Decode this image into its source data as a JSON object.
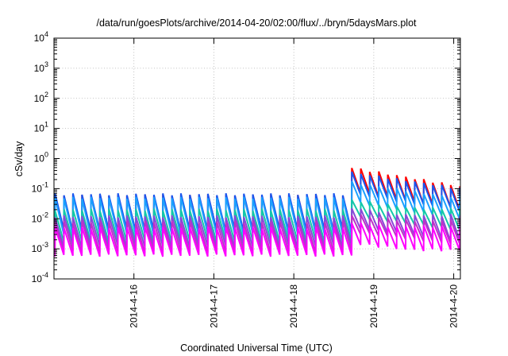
{
  "chart_data": {
    "type": "line",
    "title": "/data/run/goesPlots/archive/2014-04-20/02:00/flux/../bryn/5daysMars.plot",
    "xlabel": "Coordinated Universal Time (UTC)",
    "ylabel": "cSv/day",
    "y_scale": "log",
    "ylim": [
      0.0001,
      10000
    ],
    "y_ticks": [
      {
        "value": 0.0001,
        "base": "10",
        "exp": "-4"
      },
      {
        "value": 0.001,
        "base": "10",
        "exp": "-3"
      },
      {
        "value": 0.01,
        "base": "10",
        "exp": "-2"
      },
      {
        "value": 0.1,
        "base": "10",
        "exp": "-1"
      },
      {
        "value": 1,
        "base": "10",
        "exp": "0"
      },
      {
        "value": 10,
        "base": "10",
        "exp": "1"
      },
      {
        "value": 100,
        "base": "10",
        "exp": "2"
      },
      {
        "value": 1000,
        "base": "10",
        "exp": "3"
      },
      {
        "value": 10000,
        "base": "10",
        "exp": "4"
      }
    ],
    "xlim": [
      "2014-04-15 00:00",
      "2014-04-20 02:00"
    ],
    "x_ticks": [
      {
        "value": "2014-04-16 00:00",
        "label": "2014-4-16"
      },
      {
        "value": "2014-04-17 00:00",
        "label": "2014-4-17"
      },
      {
        "value": "2014-04-18 00:00",
        "label": "2014-4-18"
      },
      {
        "value": "2014-04-19 00:00",
        "label": "2014-4-19"
      },
      {
        "value": "2014-04-20 00:00",
        "label": "2014-4-20"
      }
    ],
    "grid": true,
    "legend": "none",
    "sawtooth": {
      "period_hours": 2.7,
      "first_peak": "2014-04-15 00:18",
      "step_up": "2014-04-18 15:00"
    },
    "series": [
      {
        "color": "#ff0000",
        "peak_before": 0.06,
        "trough_before": 0.0035,
        "peak_after": 0.55,
        "trough_after": 0.08,
        "decay_after": 0.35
      },
      {
        "color": "#1a55ee",
        "peak_before": 0.065,
        "trough_before": 0.004,
        "peak_after": 0.38,
        "trough_after": 0.065,
        "decay_after": 0.4
      },
      {
        "color": "#1aa0ff",
        "peak_before": 0.05,
        "trough_before": 0.003,
        "peak_after": 0.18,
        "trough_after": 0.035,
        "decay_after": 0.4
      },
      {
        "color": "#13c9a8",
        "peak_before": 0.02,
        "trough_before": 0.0018,
        "peak_after": 0.045,
        "trough_after": 0.012,
        "decay_after": 0.45
      },
      {
        "color": "#8a48d8",
        "peak_before": 0.012,
        "trough_before": 0.0012,
        "peak_after": 0.025,
        "trough_after": 0.005,
        "decay_after": 0.45
      },
      {
        "color": "#c030c8",
        "peak_before": 0.008,
        "trough_before": 0.0008,
        "peak_after": 0.015,
        "trough_after": 0.0035,
        "decay_after": 0.5
      },
      {
        "color": "#ff00ff",
        "peak_before": 0.005,
        "trough_before": 0.0006,
        "peak_after": 0.008,
        "trough_after": 0.0015,
        "decay_after": 0.5
      }
    ]
  }
}
